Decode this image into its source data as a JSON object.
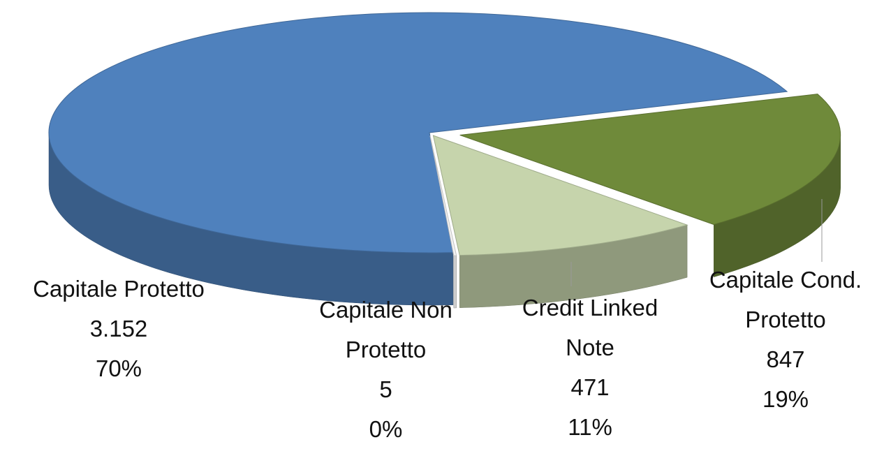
{
  "chart_data": {
    "type": "pie3d",
    "categories": [
      "Capitale Protetto",
      "Capitale Non Protetto",
      "Credit Linked Note",
      "Capitale Cond. Protetto"
    ],
    "values": [
      3152,
      5,
      471,
      847
    ],
    "value_labels": [
      "3.152",
      "5",
      "471",
      "847"
    ],
    "percent_labels": [
      "70%",
      "0%",
      "11%",
      "19%"
    ],
    "colors": [
      "#4f81bd",
      "#f2f2f2",
      "#c6d4ac",
      "#6f8a3a"
    ]
  }
}
